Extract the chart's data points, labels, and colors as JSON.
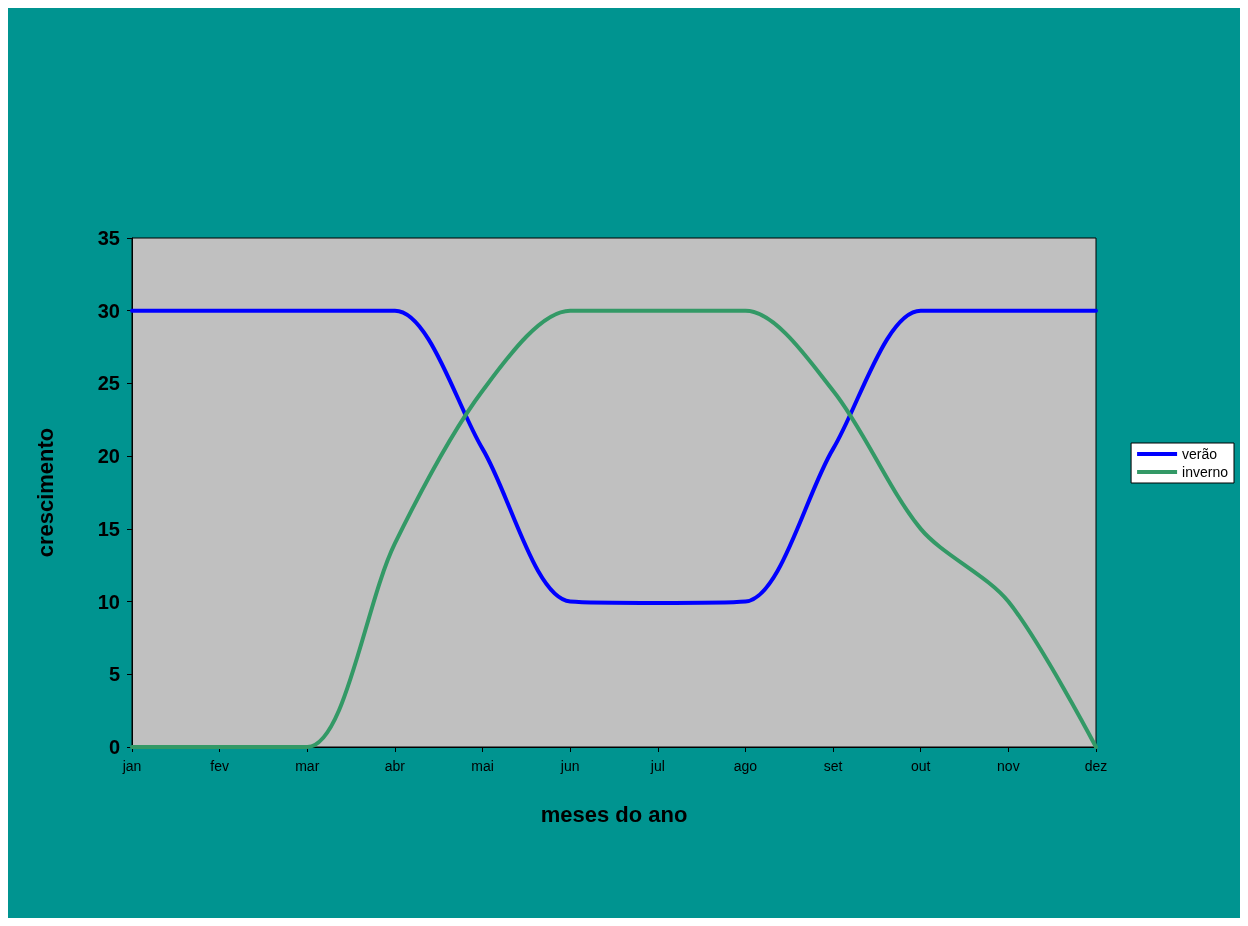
{
  "chart_data": {
    "type": "line",
    "xlabel": "meses do ano",
    "ylabel": "crescimento",
    "categories": [
      "jan",
      "fev",
      "mar",
      "abr",
      "mai",
      "jun",
      "jul",
      "ago",
      "set",
      "out",
      "nov",
      "dez"
    ],
    "ylim": [
      0,
      35
    ],
    "yticks": [
      0,
      5,
      10,
      15,
      20,
      25,
      30,
      35
    ],
    "grid": false,
    "legend": "right",
    "marker": "none",
    "line_style": "solid",
    "series": [
      {
        "name": "verão",
        "color": "#0000ff",
        "values": [
          30,
          30,
          30,
          30,
          20.5,
          10,
          9.9,
          10,
          20.5,
          30,
          30,
          30
        ]
      },
      {
        "name": "inverno",
        "color": "#339966",
        "values": [
          0,
          0,
          0,
          14,
          24.5,
          30,
          30,
          30,
          24.5,
          15,
          10,
          0
        ]
      }
    ]
  }
}
